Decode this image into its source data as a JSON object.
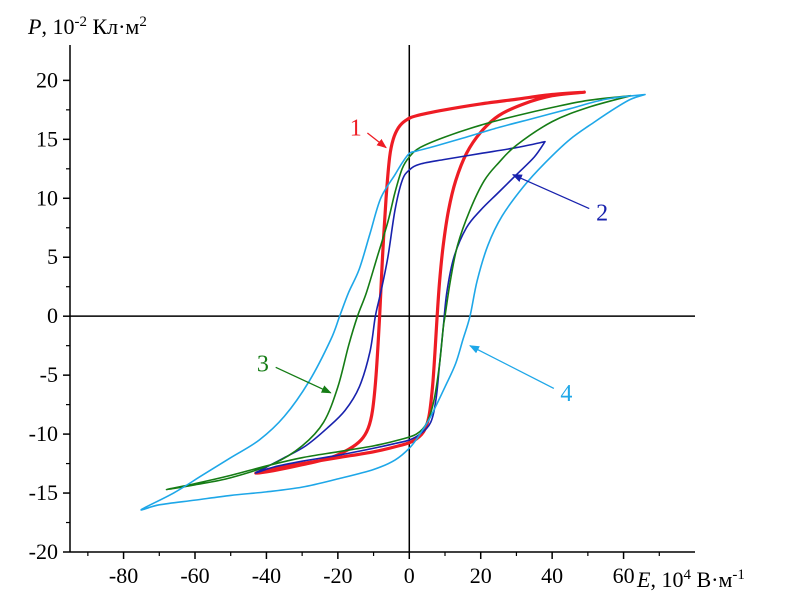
{
  "chart_data": {
    "type": "line",
    "title": "",
    "xlabel": {
      "symbol": "E",
      "rest": ", 10",
      "exp1": "4",
      "unit": " В·м",
      "exp2": "-1"
    },
    "ylabel": {
      "symbol": "P",
      "rest": ", 10",
      "exp1": "-2",
      "unit": " Кл·м",
      "exp2": "2"
    },
    "xlim": [
      -95,
      80
    ],
    "ylim": [
      -20,
      23
    ],
    "xticks": [
      -80,
      -60,
      -40,
      -20,
      0,
      20,
      40,
      60
    ],
    "xtick_labels": [
      "-80",
      "-60",
      "-40",
      "-20",
      "0",
      "20",
      "40",
      "60"
    ],
    "yticks": [
      -20,
      -15,
      -10,
      -5,
      0,
      5,
      10,
      15,
      20
    ],
    "ytick_labels": [
      "-20",
      "-15",
      "-10",
      "-5",
      "0",
      "5",
      "10",
      "15",
      "20"
    ],
    "grid": false,
    "series": [
      {
        "name": "1",
        "color": "#ee1c24",
        "label_text": "1",
        "label_at": [
          -15,
          16.0
        ],
        "arrow_to": [
          -6.5,
          14.3
        ],
        "points": [
          [
            49,
            19.0
          ],
          [
            40,
            18.8
          ],
          [
            30,
            18.4
          ],
          [
            20,
            18.0
          ],
          [
            10,
            17.5
          ],
          [
            2,
            17.0
          ],
          [
            -1,
            16.6
          ],
          [
            -3,
            16.0
          ],
          [
            -4.5,
            15.0
          ],
          [
            -5.5,
            13.5
          ],
          [
            -6.5,
            10
          ],
          [
            -7.5,
            5
          ],
          [
            -8.3,
            0
          ],
          [
            -9.3,
            -5
          ],
          [
            -10.3,
            -8
          ],
          [
            -11.5,
            -9.5
          ],
          [
            -13.5,
            -10.5
          ],
          [
            -17,
            -11.3
          ],
          [
            -22,
            -12
          ],
          [
            -30,
            -12.6
          ],
          [
            -38,
            -13.1
          ],
          [
            -43,
            -13.3
          ],
          [
            -38,
            -12.9
          ],
          [
            -30,
            -12.5
          ],
          [
            -20,
            -12.0
          ],
          [
            -10,
            -11.5
          ],
          [
            -3,
            -11.0
          ],
          [
            1,
            -10.6
          ],
          [
            4,
            -9.8
          ],
          [
            5.5,
            -8.5
          ],
          [
            6.5,
            -6
          ],
          [
            7.2,
            -3
          ],
          [
            7.8,
            0
          ],
          [
            8.5,
            3
          ],
          [
            9.5,
            6
          ],
          [
            11,
            9
          ],
          [
            13,
            11.5
          ],
          [
            16,
            13.8
          ],
          [
            20,
            15.6
          ],
          [
            25,
            17.0
          ],
          [
            32,
            18.0
          ],
          [
            40,
            18.7
          ],
          [
            49,
            19.0
          ]
        ]
      },
      {
        "name": "2",
        "color": "#1822ad",
        "label_text": "2",
        "label_at": [
          54,
          8.8
        ],
        "arrow_to": [
          29,
          12.0
        ],
        "points": [
          [
            38,
            14.8
          ],
          [
            30,
            14.3
          ],
          [
            20,
            13.8
          ],
          [
            10,
            13.3
          ],
          [
            3,
            12.9
          ],
          [
            0,
            12.4
          ],
          [
            -2,
            11.5
          ],
          [
            -4,
            9
          ],
          [
            -6,
            5
          ],
          [
            -8,
            2
          ],
          [
            -9.5,
            0
          ],
          [
            -11,
            -3
          ],
          [
            -14,
            -6
          ],
          [
            -18,
            -8
          ],
          [
            -23,
            -9.5
          ],
          [
            -29,
            -11
          ],
          [
            -35,
            -12
          ],
          [
            -40,
            -12.8
          ],
          [
            -43,
            -13.3
          ],
          [
            -38,
            -12.8
          ],
          [
            -30,
            -12.3
          ],
          [
            -20,
            -11.8
          ],
          [
            -10,
            -11.2
          ],
          [
            -4,
            -10.8
          ],
          [
            0,
            -10.5
          ],
          [
            3,
            -10
          ],
          [
            6,
            -9
          ],
          [
            7.5,
            -7
          ],
          [
            8.5,
            -4
          ],
          [
            9.5,
            -1
          ],
          [
            10.5,
            2
          ],
          [
            12.5,
            5
          ],
          [
            16,
            7.5
          ],
          [
            20,
            9
          ],
          [
            25,
            10.5
          ],
          [
            30,
            12
          ],
          [
            35,
            13.5
          ],
          [
            38,
            14.8
          ]
        ]
      },
      {
        "name": "3",
        "color": "#157c15",
        "label_text": "3",
        "label_at": [
          -41,
          -4.0
        ],
        "arrow_to": [
          -22,
          -6.5
        ],
        "points": [
          [
            62,
            18.7
          ],
          [
            50,
            18.3
          ],
          [
            40,
            17.7
          ],
          [
            30,
            17.0
          ],
          [
            20,
            16.2
          ],
          [
            10,
            15.2
          ],
          [
            3,
            14.3
          ],
          [
            0,
            13.5
          ],
          [
            -2,
            12.5
          ],
          [
            -4,
            10.5
          ],
          [
            -6,
            8
          ],
          [
            -9,
            5
          ],
          [
            -12,
            2
          ],
          [
            -14.5,
            0
          ],
          [
            -17,
            -2.5
          ],
          [
            -20,
            -6
          ],
          [
            -24,
            -9
          ],
          [
            -30,
            -11
          ],
          [
            -38,
            -12.5
          ],
          [
            -50,
            -13.7
          ],
          [
            -60,
            -14.3
          ],
          [
            -68,
            -14.7
          ],
          [
            -60,
            -14.2
          ],
          [
            -50,
            -13.5
          ],
          [
            -40,
            -12.7
          ],
          [
            -30,
            -12.0
          ],
          [
            -20,
            -11.5
          ],
          [
            -10,
            -11
          ],
          [
            -3,
            -10.5
          ],
          [
            2,
            -10
          ],
          [
            5,
            -9
          ],
          [
            7,
            -7
          ],
          [
            8.5,
            -4
          ],
          [
            9.5,
            -1
          ],
          [
            10,
            0
          ],
          [
            11.5,
            3
          ],
          [
            13.5,
            6
          ],
          [
            17,
            9
          ],
          [
            21,
            11.5
          ],
          [
            25,
            13
          ],
          [
            30,
            14.5
          ],
          [
            40,
            16.5
          ],
          [
            50,
            17.7
          ],
          [
            62,
            18.7
          ]
        ]
      },
      {
        "name": "4",
        "color": "#1ea7e8",
        "label_text": "4",
        "label_at": [
          44,
          -6.5
        ],
        "arrow_to": [
          17,
          -2.5
        ],
        "points": [
          [
            66,
            18.8
          ],
          [
            55,
            18.4
          ],
          [
            45,
            17.6
          ],
          [
            35,
            16.8
          ],
          [
            25,
            16.0
          ],
          [
            15,
            15.1
          ],
          [
            7,
            14.4
          ],
          [
            2,
            14.0
          ],
          [
            0,
            13.8
          ],
          [
            -2,
            13.0
          ],
          [
            -4,
            12
          ],
          [
            -8,
            10
          ],
          [
            -11,
            7
          ],
          [
            -14,
            4
          ],
          [
            -17,
            2
          ],
          [
            -19.5,
            0
          ],
          [
            -22,
            -2
          ],
          [
            -28,
            -5.5
          ],
          [
            -35,
            -8.5
          ],
          [
            -42,
            -10.5
          ],
          [
            -50,
            -12
          ],
          [
            -58,
            -13.5
          ],
          [
            -66,
            -15
          ],
          [
            -75,
            -16.4
          ],
          [
            -70,
            -16.0
          ],
          [
            -60,
            -15.6
          ],
          [
            -50,
            -15.2
          ],
          [
            -40,
            -14.9
          ],
          [
            -30,
            -14.5
          ],
          [
            -20,
            -13.8
          ],
          [
            -10,
            -13
          ],
          [
            -4,
            -12.2
          ],
          [
            0,
            -11.2
          ],
          [
            3,
            -10
          ],
          [
            6,
            -8.5
          ],
          [
            10,
            -6
          ],
          [
            13,
            -4
          ],
          [
            15,
            -2
          ],
          [
            17,
            0
          ],
          [
            19,
            3
          ],
          [
            22,
            6
          ],
          [
            26,
            8.5
          ],
          [
            32,
            11
          ],
          [
            38,
            13
          ],
          [
            45,
            15
          ],
          [
            52,
            16.5
          ],
          [
            58,
            17.7
          ],
          [
            62,
            18.4
          ],
          [
            66,
            18.8
          ]
        ]
      }
    ]
  }
}
